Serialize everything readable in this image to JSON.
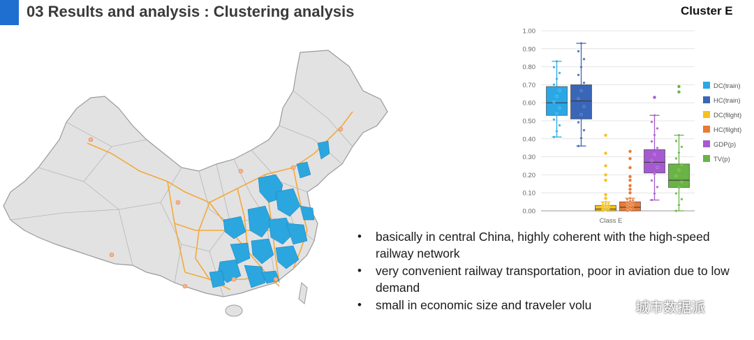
{
  "slide": {
    "title": "03 Results and analysis : Clustering analysis",
    "cluster_label": "Cluster E",
    "bullets": [
      "basically in central China, highly coherent with the high-speed railway network",
      "very convenient railway transportation, poor in aviation due to low demand",
      "small in economic size and traveler volu"
    ],
    "watermark": "城市数据派"
  },
  "colors": {
    "accent": "#1f6fd1",
    "cluster_fill": "#2ba6df",
    "railway": "#f2a93b",
    "province_fill": "#e2e2e2"
  },
  "icons": [
    "wechat-icon",
    "bullet-dot"
  ],
  "chart_data": {
    "type": "box",
    "xlabel": "Class E",
    "ylabel": "",
    "ylim": [
      0,
      1
    ],
    "yticks": [
      "0.00",
      "0.10",
      "0.20",
      "0.30",
      "0.40",
      "0.50",
      "0.60",
      "0.70",
      "0.80",
      "0.90",
      "1.00"
    ],
    "legend_position": "right",
    "series": [
      {
        "name": "DC(train)",
        "color": "#2aa8e6",
        "min": 0.41,
        "q1": 0.53,
        "median": 0.6,
        "q3": 0.69,
        "max": 0.83,
        "outliers": []
      },
      {
        "name": "HC(train)",
        "color": "#3a66b8",
        "min": 0.36,
        "q1": 0.51,
        "median": 0.61,
        "q3": 0.7,
        "max": 0.93,
        "outliers": []
      },
      {
        "name": "DC(filght)",
        "color": "#f5c21b",
        "min": 0.0,
        "q1": 0.0,
        "median": 0.01,
        "q3": 0.03,
        "max": 0.05,
        "outliers": [
          0.42,
          0.32,
          0.25,
          0.2,
          0.17,
          0.09,
          0.07
        ]
      },
      {
        "name": "HC(filght)",
        "color": "#ea7a33",
        "min": 0.0,
        "q1": 0.0,
        "median": 0.02,
        "q3": 0.05,
        "max": 0.07,
        "outliers": [
          0.33,
          0.29,
          0.24,
          0.19,
          0.17,
          0.14,
          0.12,
          0.1
        ]
      },
      {
        "name": "GDP(p)",
        "color": "#a65ad2",
        "min": 0.06,
        "q1": 0.21,
        "median": 0.27,
        "q3": 0.34,
        "max": 0.53,
        "outliers": [
          0.63
        ]
      },
      {
        "name": "TV(p)",
        "color": "#6ab345",
        "min": 0.0,
        "q1": 0.13,
        "median": 0.17,
        "q3": 0.26,
        "max": 0.42,
        "outliers": [
          0.69,
          0.66
        ]
      }
    ]
  }
}
